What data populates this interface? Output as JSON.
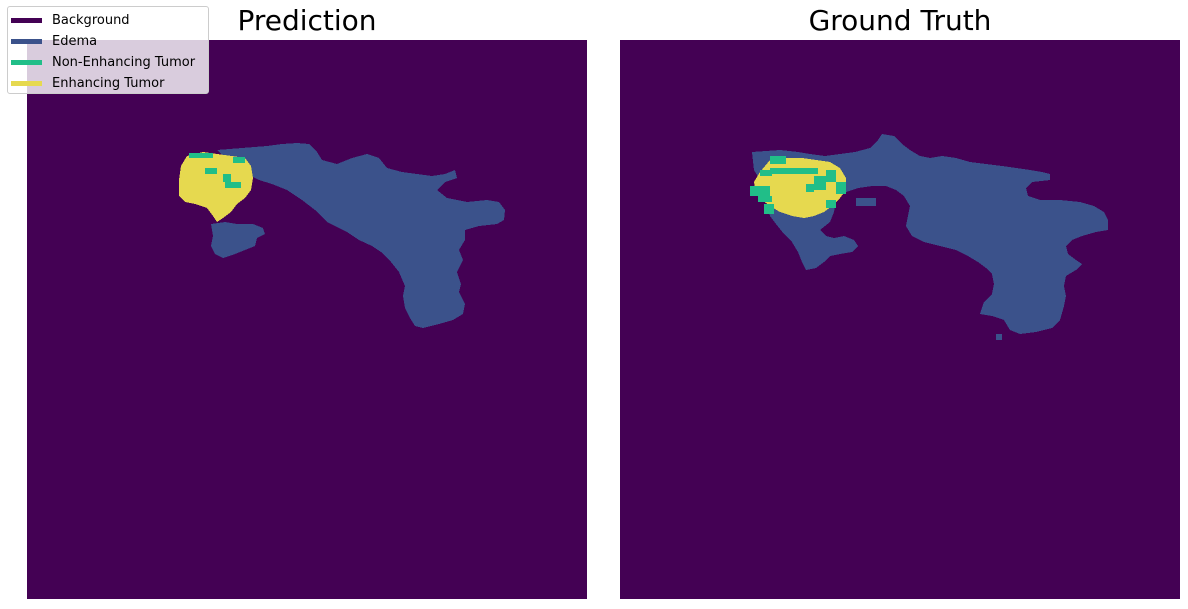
{
  "legend": {
    "items": [
      {
        "label": "Background",
        "color": "#440154"
      },
      {
        "label": "Edema",
        "color": "#3b528b"
      },
      {
        "label": "Non-Enhancing Tumor",
        "color": "#21be88"
      },
      {
        "label": "Enhancing Tumor",
        "color": "#e6d94f"
      }
    ]
  },
  "panels": {
    "left_title": "Prediction",
    "right_title": "Ground Truth"
  },
  "colors": {
    "background": "#440154",
    "edema": "#3b528b",
    "non_enhancing": "#21be88",
    "enhancing": "#e6d94f"
  }
}
